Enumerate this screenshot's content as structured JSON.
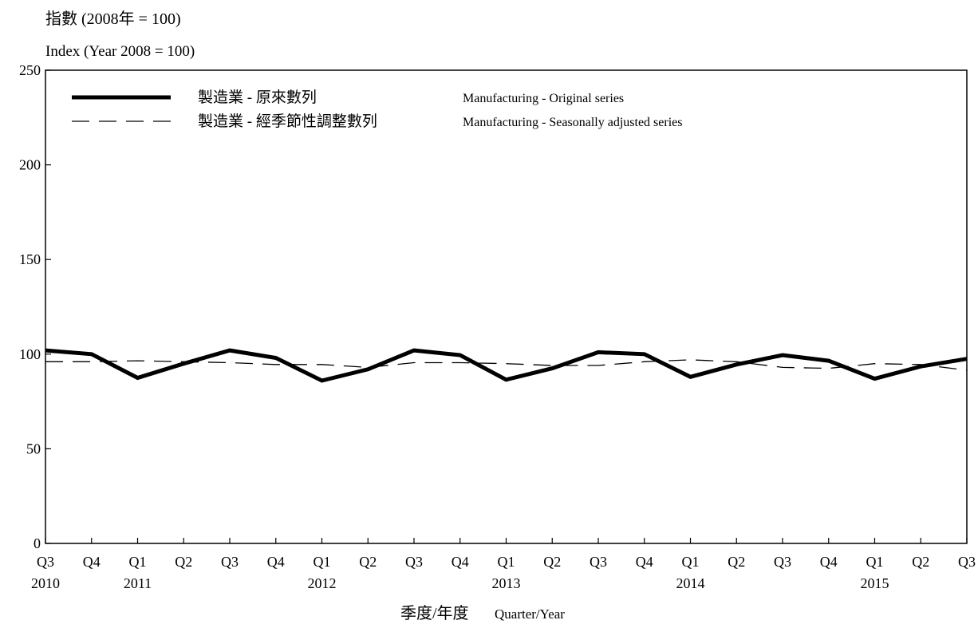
{
  "chart_data": {
    "type": "line",
    "ylabel_zh": "指數 (2008年 = 100)",
    "ylabel_en": "Index (Year 2008 = 100)",
    "xlabel_zh": "季度/年度",
    "xlabel_en": "Quarter/Year",
    "ylim": [
      0,
      250
    ],
    "yticks": [
      "0",
      "50",
      "100",
      "150",
      "200",
      "250"
    ],
    "categories": [
      "Q3",
      "Q4",
      "Q1",
      "Q2",
      "Q3",
      "Q4",
      "Q1",
      "Q2",
      "Q3",
      "Q4",
      "Q1",
      "Q2",
      "Q3",
      "Q4",
      "Q1",
      "Q2",
      "Q3",
      "Q4",
      "Q1",
      "Q2",
      "Q3"
    ],
    "year_labels": [
      {
        "index": 0,
        "label": "2010"
      },
      {
        "index": 2,
        "label": "2011"
      },
      {
        "index": 6,
        "label": "2012"
      },
      {
        "index": 10,
        "label": "2013"
      },
      {
        "index": 14,
        "label": "2014"
      },
      {
        "index": 18,
        "label": "2015"
      }
    ],
    "legend_position": "top-left",
    "series": [
      {
        "name_zh": "製造業 - 原來數列",
        "name_en": "Manufacturing - Original series",
        "style": "solid-thick",
        "values": [
          102,
          100,
          87.5,
          95,
          102,
          98,
          86,
          92,
          102,
          99.5,
          86.5,
          92.5,
          101,
          100,
          88,
          94.5,
          99.5,
          96.5,
          87,
          93.5,
          97.5
        ]
      },
      {
        "name_zh": "製造業 - 經季節性調整數列",
        "name_en": "Manufacturing - Seasonally adjusted series",
        "style": "dashed-thin",
        "values": [
          96,
          96,
          96.5,
          96,
          95.5,
          94.5,
          94.5,
          93,
          95.5,
          95.5,
          95,
          94,
          94,
          96,
          97,
          96,
          93,
          92.5,
          95,
          94.5,
          91.5
        ]
      }
    ],
    "grid": false,
    "colors": {
      "line": "#000000",
      "background": "#ffffff"
    }
  }
}
